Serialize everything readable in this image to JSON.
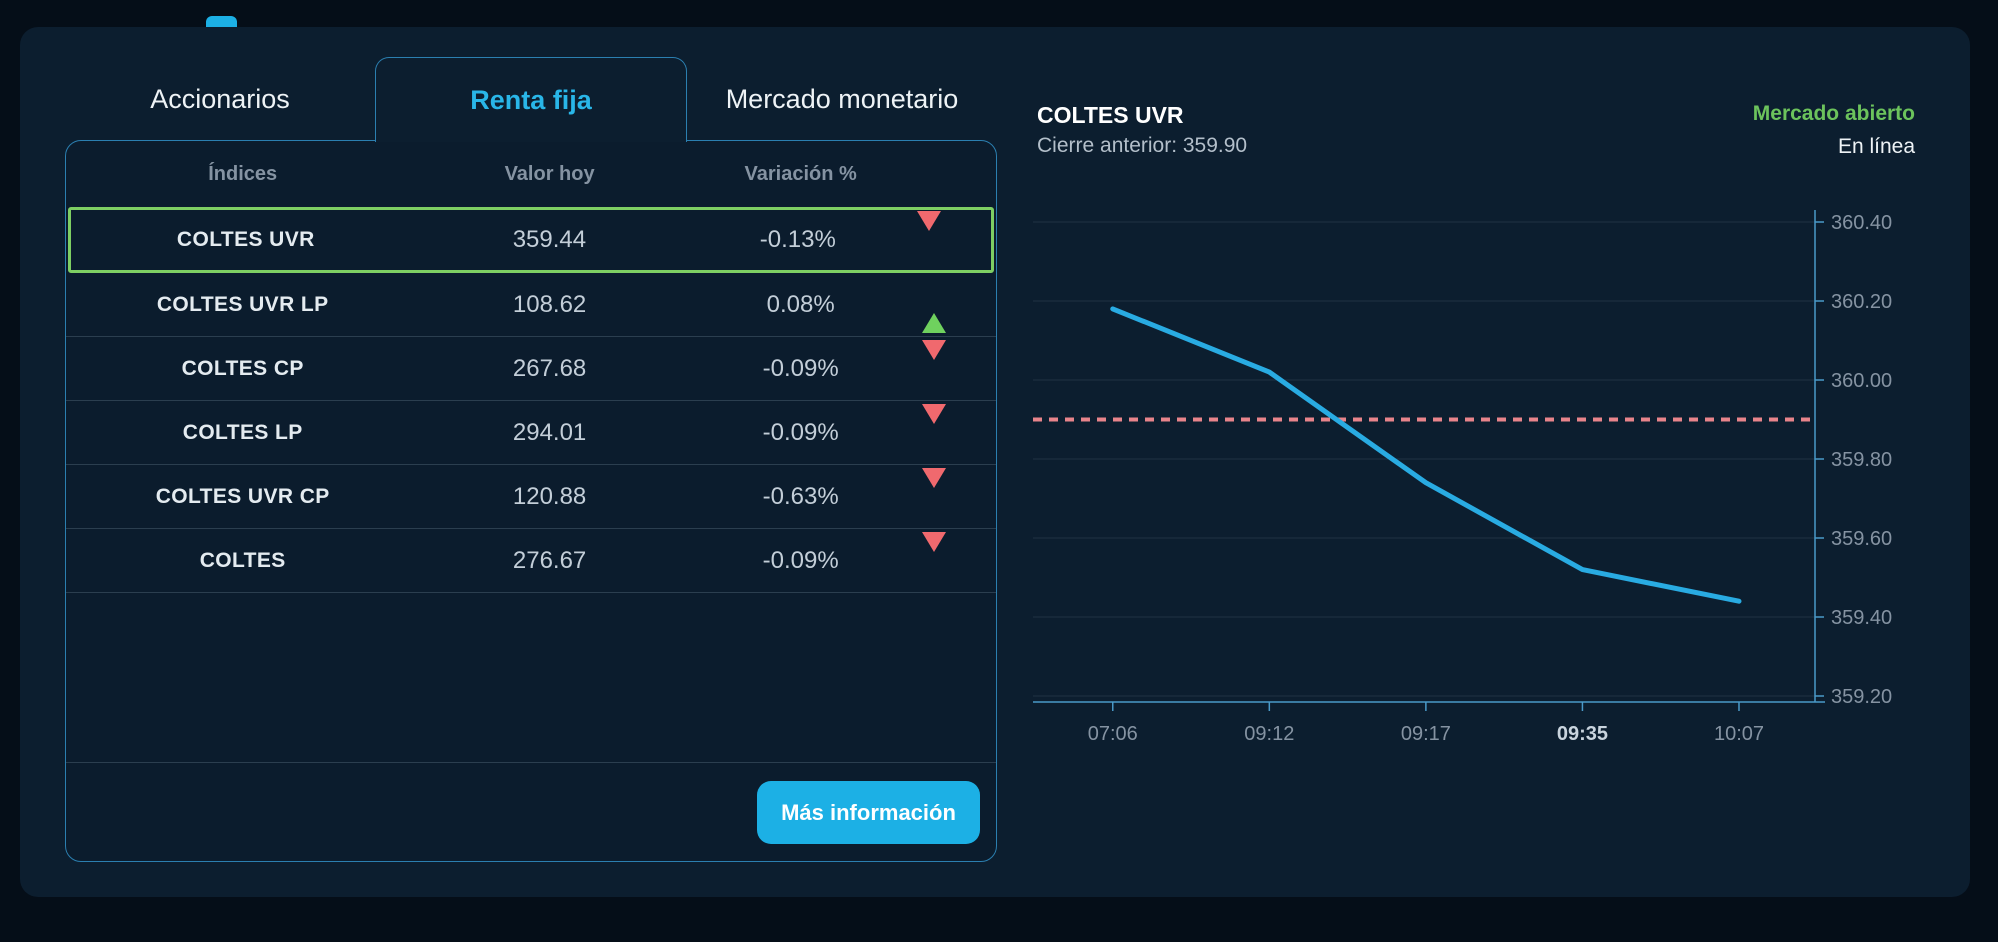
{
  "tabs": [
    {
      "label": "Accionarios",
      "active": false
    },
    {
      "label": "Renta fija",
      "active": true
    },
    {
      "label": "Mercado monetario",
      "active": false
    }
  ],
  "table": {
    "headers": [
      "Índices",
      "Valor hoy",
      "Variación %"
    ],
    "rows": [
      {
        "name": "COLTES UVR",
        "value": "359.44",
        "change": "-0.13%",
        "direction": "down",
        "selected": true
      },
      {
        "name": "COLTES UVR LP",
        "value": "108.62",
        "change": "0.08%",
        "direction": "up",
        "selected": false
      },
      {
        "name": "COLTES CP",
        "value": "267.68",
        "change": "-0.09%",
        "direction": "down",
        "selected": false
      },
      {
        "name": "COLTES LP",
        "value": "294.01",
        "change": "-0.09%",
        "direction": "down",
        "selected": false
      },
      {
        "name": "COLTES UVR CP",
        "value": "120.88",
        "change": "-0.63%",
        "direction": "down",
        "selected": false
      },
      {
        "name": "COLTES",
        "value": "276.67",
        "change": "-0.09%",
        "direction": "down",
        "selected": false
      }
    ],
    "button_label": "Más información"
  },
  "detail": {
    "title": "COLTES UVR",
    "prev_close_label": "Cierre anterior: 359.90",
    "market_status": "Mercado abierto",
    "connection_status": "En línea"
  },
  "chart_data": {
    "type": "line",
    "x": [
      "07:06",
      "09:12",
      "09:17",
      "09:35",
      "10:07"
    ],
    "series": [
      {
        "name": "COLTES UVR",
        "values": [
          360.18,
          360.02,
          359.74,
          359.52,
          359.44
        ]
      }
    ],
    "reference_line": {
      "label": "Cierre anterior",
      "value": 359.9,
      "style": "dashed",
      "color": "#e8848b"
    },
    "ylim": [
      359.2,
      360.4
    ],
    "yticks": [
      360.4,
      360.2,
      360.0,
      359.8,
      359.6,
      359.4,
      359.2
    ],
    "ytick_labels": [
      "360.40",
      "360.20",
      "360.00",
      "359.80",
      "359.60",
      "359.40",
      "359.20"
    ],
    "bold_xtick": "09:35",
    "grid": true,
    "legend": "none",
    "line_color": "#29abe2",
    "axis_color": "#4a9ac9",
    "tick_label_color": "#8593a2",
    "grid_color": "rgba(170,190,210,0.13)"
  },
  "colors": {
    "accent_cyan": "#1cb0e5",
    "selected_row_green": "#7ecf63",
    "negative_red": "#f0696e",
    "positive_green": "#6fd15e",
    "market_open_green": "#6cc35c",
    "panel_border": "#2b7fb0",
    "card_bg": "#0c1e2f",
    "page_bg": "#050e18"
  }
}
